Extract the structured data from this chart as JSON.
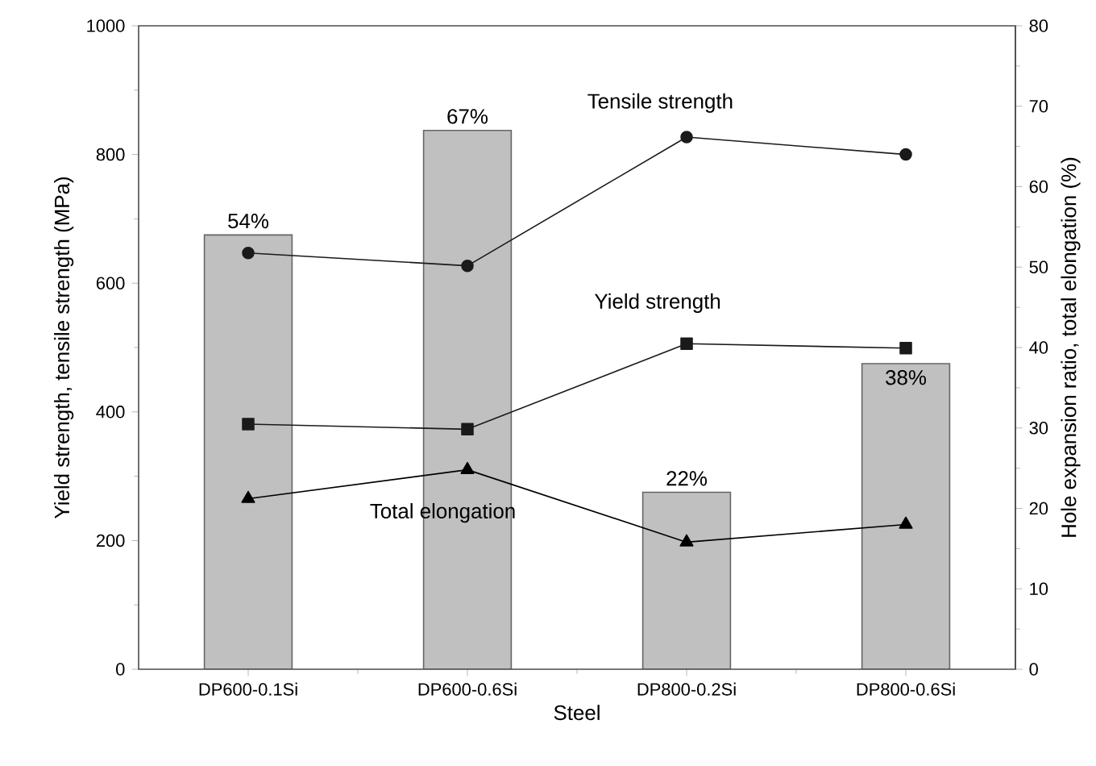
{
  "chart_data": {
    "type": "bar",
    "xlabel": "Steel",
    "ylabel": "Yield strength, tensile strength (MPa)",
    "y2label": "Hole expansion ratio, total elongation (%)",
    "categories": [
      "DP600-0.1Si",
      "DP600-0.6Si",
      "DP800-0.2Si",
      "DP800-0.6Si"
    ],
    "ylim": [
      0,
      1000
    ],
    "yticks": [
      0,
      200,
      400,
      600,
      800,
      1000
    ],
    "y2lim": [
      0,
      80
    ],
    "y2ticks": [
      0,
      10,
      20,
      30,
      40,
      50,
      60,
      70,
      80
    ],
    "grid": false,
    "series": [
      {
        "axis": "y2",
        "color": "#c0c0c0",
        "values": [
          54,
          67,
          22,
          38
        ],
        "value_labels": [
          "54%",
          "67%",
          "22%",
          "38%"
        ]
      },
      {
        "type": "line",
        "name": "Tensile strength",
        "color": "#1a1a1a",
        "marker": "circle",
        "values": [
          647,
          627,
          827,
          800
        ]
      },
      {
        "type": "line",
        "name": "Yield strength",
        "color": "#1a1a1a",
        "marker": "square",
        "values": [
          381,
          373,
          506,
          499
        ]
      },
      {
        "type": "line",
        "name": "Total elongation",
        "color": "#000000",
        "axis": "y2",
        "marker": "triangle",
        "values": [
          21.2,
          24.8,
          15.8,
          18.0
        ]
      }
    ]
  }
}
